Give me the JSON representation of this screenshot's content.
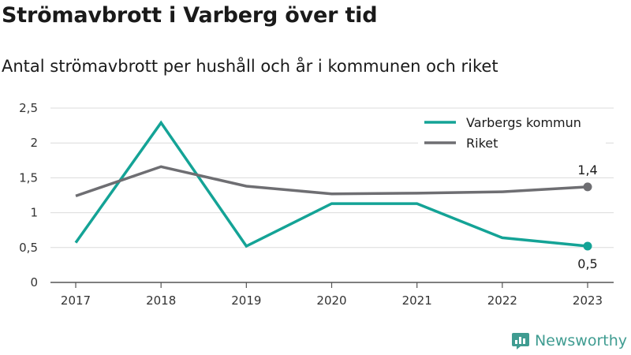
{
  "title": "Strömavbrott i Varberg över tid",
  "subtitle": "Antal strömavbrott per hushåll och år i kommunen och riket",
  "brand": {
    "name": "Newsworthy",
    "logo_icon": "newsworthy-logo-icon",
    "color": "#3f9c91"
  },
  "chart_data": {
    "type": "line",
    "categories": [
      "2017",
      "2018",
      "2019",
      "2020",
      "2021",
      "2022",
      "2023"
    ],
    "series": [
      {
        "name": "Varbergs kommun",
        "color": "#14a396",
        "values": [
          0.57,
          2.29,
          0.52,
          1.13,
          1.13,
          0.64,
          0.52
        ],
        "end_label": "0,5"
      },
      {
        "name": "Riket",
        "color": "#6e6e72",
        "values": [
          1.24,
          1.66,
          1.38,
          1.27,
          1.28,
          1.3,
          1.37
        ],
        "end_label": "1,4"
      }
    ],
    "ylim": [
      0,
      2.5
    ],
    "yticks": [
      {
        "value": 0,
        "label": "0"
      },
      {
        "value": 0.5,
        "label": "0,5"
      },
      {
        "value": 1,
        "label": "1"
      },
      {
        "value": 1.5,
        "label": "1,5"
      },
      {
        "value": 2,
        "label": "2"
      },
      {
        "value": 2.5,
        "label": "2,5"
      }
    ],
    "grid": true,
    "legend_position": "top-right"
  }
}
